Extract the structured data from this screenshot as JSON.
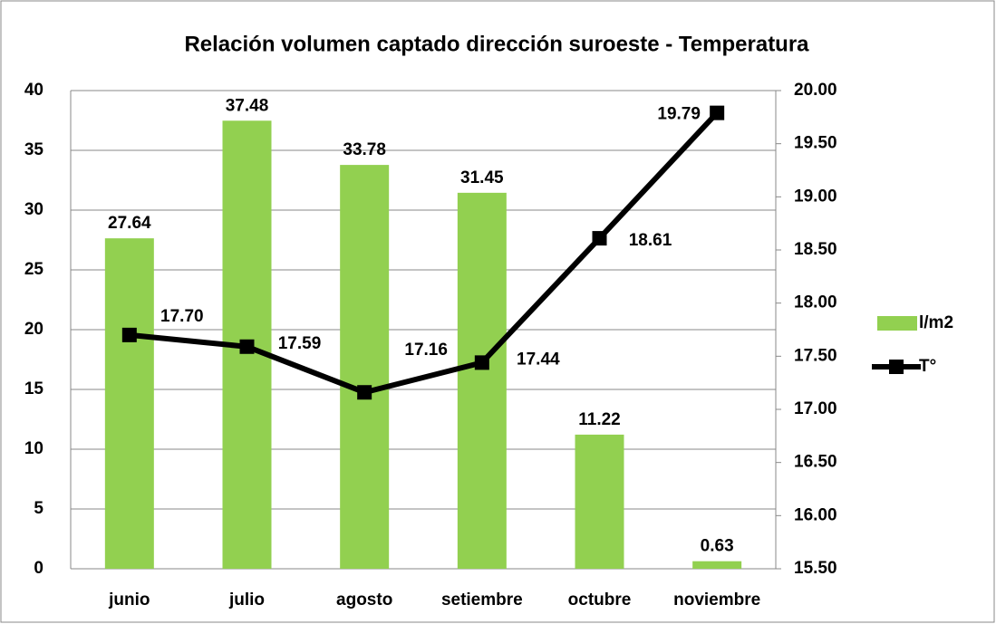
{
  "chart_data": {
    "type": "bar_line",
    "title": "Relación volumen captado dirección suroeste - Temperatura",
    "categories": [
      "junio",
      "julio",
      "agosto",
      "setiembre",
      "octubre",
      "noviembre"
    ],
    "series": [
      {
        "name": "l/m2",
        "type": "bar",
        "color": "#92d050",
        "values": [
          27.64,
          37.48,
          33.78,
          31.45,
          11.22,
          0.63
        ]
      },
      {
        "name": "T°",
        "type": "line",
        "axis": "y2",
        "color": "#000000",
        "values": [
          17.7,
          17.59,
          17.16,
          17.44,
          18.61,
          19.79
        ],
        "value_labels": [
          "17.70",
          "17.59",
          "17.16",
          "17.44",
          "18.61",
          "19.79"
        ]
      }
    ],
    "ylim": [
      0,
      40
    ],
    "yticks": [
      0,
      5,
      10,
      15,
      20,
      25,
      30,
      35,
      40
    ],
    "y2lim": [
      15.5,
      20
    ],
    "y2ticks": [
      {
        "value": 15.5,
        "label": "15.50"
      },
      {
        "value": 16,
        "label": "16.00"
      },
      {
        "value": 16.5,
        "label": "16.50"
      },
      {
        "value": 17,
        "label": "17.00"
      },
      {
        "value": 17.5,
        "label": "17.50"
      },
      {
        "value": 18,
        "label": "18.00"
      },
      {
        "value": 18.5,
        "label": "18.50"
      },
      {
        "value": 19,
        "label": "19.00"
      },
      {
        "value": 19.5,
        "label": "19.50"
      },
      {
        "value": 20,
        "label": "20.00"
      }
    ],
    "grid": true,
    "legend": "right"
  }
}
